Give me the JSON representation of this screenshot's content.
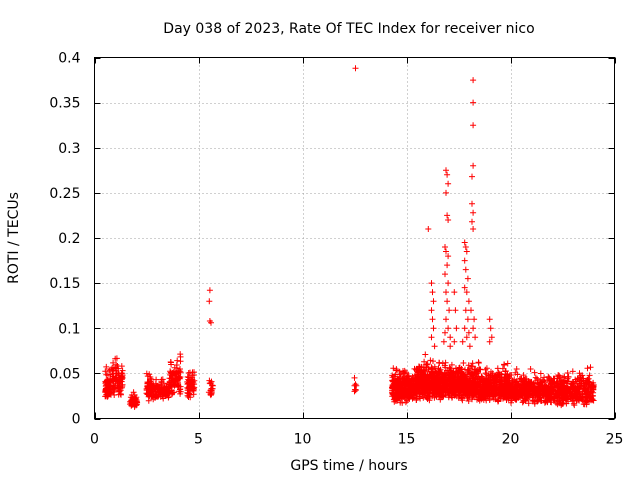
{
  "chart_data": {
    "type": "scatter",
    "title": "Day 038 of 2023, Rate Of TEC Index for receiver nico",
    "xlabel": "GPS time / hours",
    "ylabel": "ROTI / TECUs",
    "xlim": [
      0,
      25
    ],
    "ylim": [
      0,
      0.4
    ],
    "x_ticks": [
      0,
      5,
      10,
      15,
      20,
      25
    ],
    "x_tick_labels": [
      "0",
      "5",
      "10",
      "15",
      "20",
      "25"
    ],
    "y_ticks": [
      0,
      0.05,
      0.1,
      0.15,
      0.2,
      0.25,
      0.3,
      0.35,
      0.4
    ],
    "y_tick_labels": [
      "0",
      "0.05",
      "0.1",
      "0.15",
      "0.2",
      "0.25",
      "0.3",
      "0.35",
      "0.4"
    ],
    "grid": true,
    "marker": "+",
    "color": "#ff0000",
    "clusters": [
      {
        "x_start": 0.5,
        "x_end": 0.8,
        "y_min": 0.012,
        "y_max": 0.07,
        "count": 70
      },
      {
        "x_start": 0.85,
        "x_end": 1.35,
        "y_min": 0.015,
        "y_max": 0.078,
        "count": 80
      },
      {
        "x_start": 1.7,
        "x_end": 2.05,
        "y_min": 0.008,
        "y_max": 0.035,
        "count": 60
      },
      {
        "x_start": 2.5,
        "x_end": 2.75,
        "y_min": 0.01,
        "y_max": 0.065,
        "count": 50
      },
      {
        "x_start": 2.75,
        "x_end": 3.6,
        "y_min": 0.015,
        "y_max": 0.05,
        "count": 110
      },
      {
        "x_start": 3.6,
        "x_end": 4.15,
        "y_min": 0.015,
        "y_max": 0.08,
        "count": 90
      },
      {
        "x_start": 4.45,
        "x_end": 4.8,
        "y_min": 0.015,
        "y_max": 0.065,
        "count": 70
      },
      {
        "x_start": 5.5,
        "x_end": 5.7,
        "y_min": 0.02,
        "y_max": 0.05,
        "count": 20
      },
      {
        "x_start": 12.45,
        "x_end": 12.6,
        "y_min": 0.025,
        "y_max": 0.045,
        "count": 5
      },
      {
        "x_start": 14.3,
        "x_end": 15.5,
        "y_min": 0.008,
        "y_max": 0.065,
        "count": 360
      },
      {
        "x_start": 15.5,
        "x_end": 16.8,
        "y_min": 0.01,
        "y_max": 0.075,
        "count": 400
      },
      {
        "x_start": 16.8,
        "x_end": 18.5,
        "y_min": 0.01,
        "y_max": 0.075,
        "count": 460
      },
      {
        "x_start": 18.5,
        "x_end": 20.0,
        "y_min": 0.008,
        "y_max": 0.07,
        "count": 380
      },
      {
        "x_start": 20.0,
        "x_end": 22.0,
        "y_min": 0.008,
        "y_max": 0.06,
        "count": 420
      },
      {
        "x_start": 22.0,
        "x_end": 24.0,
        "y_min": 0.005,
        "y_max": 0.062,
        "count": 360
      }
    ],
    "points": [
      [
        5.55,
        0.142
      ],
      [
        5.52,
        0.13
      ],
      [
        5.55,
        0.108
      ],
      [
        5.6,
        0.106
      ],
      [
        12.55,
        0.388
      ],
      [
        12.5,
        0.045
      ],
      [
        12.55,
        0.038
      ],
      [
        12.5,
        0.03
      ],
      [
        16.05,
        0.21
      ],
      [
        16.2,
        0.15
      ],
      [
        16.25,
        0.14
      ],
      [
        16.3,
        0.13
      ],
      [
        16.2,
        0.12
      ],
      [
        16.25,
        0.11
      ],
      [
        16.3,
        0.1
      ],
      [
        16.2,
        0.09
      ],
      [
        16.35,
        0.08
      ],
      [
        16.9,
        0.275
      ],
      [
        16.95,
        0.27
      ],
      [
        17.0,
        0.26
      ],
      [
        16.9,
        0.25
      ],
      [
        16.95,
        0.225
      ],
      [
        17.0,
        0.22
      ],
      [
        16.85,
        0.19
      ],
      [
        16.9,
        0.185
      ],
      [
        17.0,
        0.18
      ],
      [
        16.95,
        0.17
      ],
      [
        16.85,
        0.16
      ],
      [
        17.0,
        0.15
      ],
      [
        16.9,
        0.14
      ],
      [
        16.95,
        0.13
      ],
      [
        17.05,
        0.12
      ],
      [
        16.9,
        0.11
      ],
      [
        17.0,
        0.1
      ],
      [
        16.85,
        0.095
      ],
      [
        17.1,
        0.09
      ],
      [
        16.8,
        0.085
      ],
      [
        17.1,
        0.08
      ],
      [
        17.3,
        0.14
      ],
      [
        17.35,
        0.12
      ],
      [
        17.4,
        0.1
      ],
      [
        17.3,
        0.085
      ],
      [
        17.8,
        0.195
      ],
      [
        17.85,
        0.19
      ],
      [
        17.9,
        0.185
      ],
      [
        17.8,
        0.175
      ],
      [
        17.85,
        0.165
      ],
      [
        17.95,
        0.155
      ],
      [
        17.8,
        0.145
      ],
      [
        17.9,
        0.14
      ],
      [
        18.0,
        0.13
      ],
      [
        17.85,
        0.12
      ],
      [
        17.95,
        0.11
      ],
      [
        17.8,
        0.1
      ],
      [
        18.0,
        0.095
      ],
      [
        17.9,
        0.09
      ],
      [
        17.7,
        0.085
      ],
      [
        18.05,
        0.08
      ],
      [
        18.2,
        0.375
      ],
      [
        18.2,
        0.35
      ],
      [
        18.2,
        0.325
      ],
      [
        18.2,
        0.28
      ],
      [
        18.15,
        0.268
      ],
      [
        18.15,
        0.238
      ],
      [
        18.2,
        0.228
      ],
      [
        18.15,
        0.218
      ],
      [
        18.2,
        0.21
      ],
      [
        18.1,
        0.12
      ],
      [
        18.25,
        0.11
      ],
      [
        18.2,
        0.1
      ],
      [
        18.3,
        0.09
      ],
      [
        19.0,
        0.11
      ],
      [
        19.05,
        0.1
      ],
      [
        19.1,
        0.09
      ],
      [
        19.0,
        0.085
      ]
    ]
  }
}
